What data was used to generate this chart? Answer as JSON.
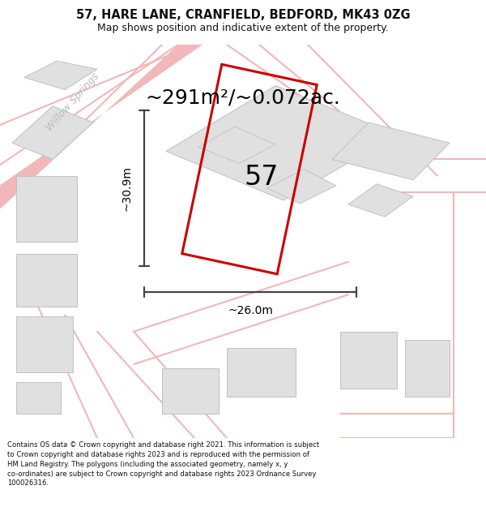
{
  "title": "57, HARE LANE, CRANFIELD, BEDFORD, MK43 0ZG",
  "subtitle": "Map shows position and indicative extent of the property.",
  "area_text": "~291m²/~0.072ac.",
  "number_label": "57",
  "dim_width": "~26.0m",
  "dim_height": "~30.9m",
  "footer": "Contains OS data © Crown copyright and database right 2021. This information is subject to Crown copyright and database rights 2023 and is reproduced with the permission of HM Land Registry. The polygons (including the associated geometry, namely x, y co-ordinates) are subject to Crown copyright and database rights 2023 Ordnance Survey 100026316.",
  "map_bg": "#ffffff",
  "road_color": "#f0b8b8",
  "building_face": "#e0e0e0",
  "building_edge": "#c0c0c0",
  "highlight_color": "#cc0000",
  "dim_color": "#444444",
  "title_color": "#111111",
  "footer_color": "#111111",
  "street_label": "Willow Springs",
  "street_label_color": "#bbbbbb",
  "title_fontsize": 10.5,
  "subtitle_fontsize": 9.0,
  "area_fontsize": 18,
  "number_fontsize": 24,
  "dim_fontsize": 10,
  "street_fontsize": 9,
  "footer_fontsize": 6.1
}
